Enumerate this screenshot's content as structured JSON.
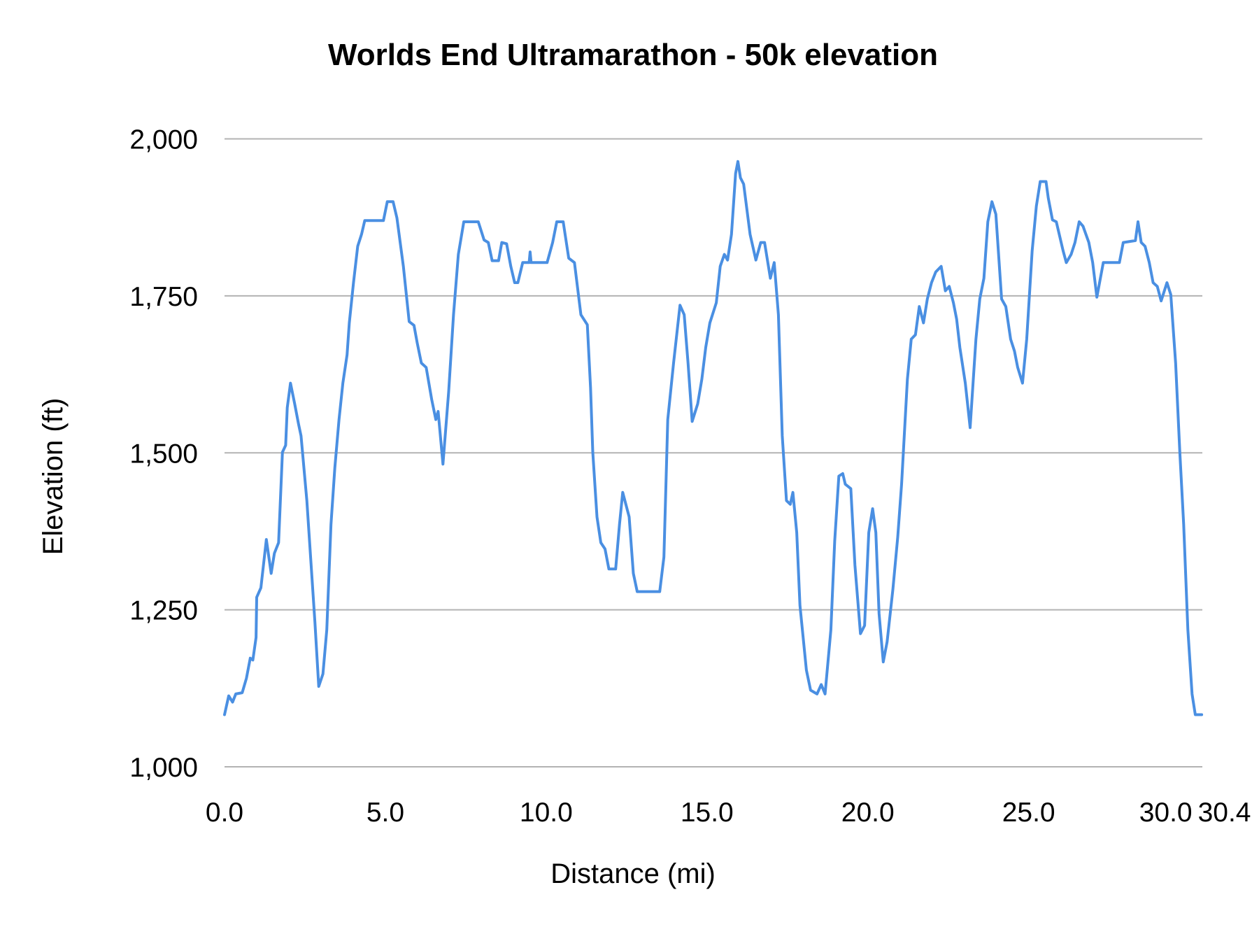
{
  "chart_data": {
    "type": "line",
    "title": "Worlds End Ultramarathon - 50k elevation",
    "xlabel": "Distance (mi)",
    "ylabel": "Elevation (ft)",
    "xlim": [
      0,
      30.4
    ],
    "ylim": [
      1000,
      2000
    ],
    "x_ticks": [
      "0.0",
      "5.0",
      "10.0",
      "15.0",
      "20.0",
      "25.0",
      "30.0",
      "30.4"
    ],
    "x_tick_values": [
      0,
      5,
      10,
      15,
      20,
      25,
      30,
      30.4
    ],
    "y_ticks": [
      "1,000",
      "1,250",
      "1,500",
      "1,750",
      "2,000"
    ],
    "y_tick_values": [
      1000,
      1250,
      1500,
      1750,
      2000
    ],
    "grid": "horizontal",
    "line_color": "#4a8fe2",
    "grid_color": "#b3b3b3",
    "series": [
      {
        "x": [
          0,
          0.13,
          0.25,
          0.35,
          0.55,
          0.68,
          0.8,
          0.88,
          0.98,
          1.0,
          1.13,
          1.3,
          1.45,
          1.55,
          1.68,
          1.8,
          1.9,
          1.95,
          2.05,
          2.18,
          2.3,
          2.38,
          2.56,
          2.81,
          2.93,
          3.06,
          3.18,
          3.31,
          3.43,
          3.56,
          3.68,
          3.81,
          3.88,
          4.01,
          4.14,
          4.26,
          4.36,
          4.94,
          5.06,
          5.24,
          5.36,
          5.56,
          5.74,
          5.89,
          5.99,
          6.12,
          6.27,
          6.44,
          6.57,
          6.64,
          6.79,
          6.97,
          7.12,
          7.27,
          7.44,
          7.89,
          8.07,
          8.2,
          8.32,
          8.52,
          8.62,
          8.77,
          8.9,
          9.02,
          9.12,
          9.27,
          9.47,
          9.5,
          9.53,
          10.03,
          10.2,
          10.33,
          10.53,
          10.7,
          10.88,
          11.08,
          11.28,
          11.38,
          11.45,
          11.58,
          11.7,
          11.83,
          11.95,
          12.16,
          12.28,
          12.38,
          12.58,
          12.71,
          12.83,
          13.53,
          13.66,
          13.78,
          13.96,
          14.16,
          14.29,
          14.41,
          14.54,
          14.71,
          14.84,
          14.96,
          15.09,
          15.29,
          15.41,
          15.54,
          15.64,
          15.76,
          15.89,
          15.96,
          16.04,
          16.14,
          16.34,
          16.52,
          16.67,
          16.79,
          16.97,
          17.09,
          17.22,
          17.34,
          17.47,
          17.59,
          17.67,
          17.79,
          17.89,
          18.09,
          18.22,
          18.42,
          18.55,
          18.67,
          18.85,
          18.97,
          19.1,
          19.22,
          19.3,
          19.47,
          19.6,
          19.77,
          19.9,
          20.03,
          20.15,
          20.25,
          20.35,
          20.48,
          20.6,
          20.78,
          20.93,
          21.05,
          21.23,
          21.35,
          21.48,
          21.6,
          21.73,
          21.85,
          21.98,
          22.11,
          22.28,
          22.41,
          22.53,
          22.66,
          22.76,
          22.86,
          23.03,
          23.18,
          23.36,
          23.48,
          23.61,
          23.73,
          23.86,
          23.98,
          24.16,
          24.29,
          24.44,
          24.56,
          24.66,
          24.81,
          24.94,
          25.11,
          25.24,
          25.36,
          25.54,
          25.61,
          25.74,
          25.86,
          26.07,
          26.17,
          26.32,
          26.44,
          26.57,
          26.69,
          26.87,
          26.99,
          27.12,
          27.32,
          27.82,
          27.94,
          28.32,
          28.4,
          28.5,
          28.62,
          28.75,
          28.87,
          29.0,
          29.12,
          29.3,
          29.42,
          29.57,
          29.7,
          29.82,
          29.95,
          30.08,
          30.18,
          30.38
        ],
        "y": [
          1083,
          1113,
          1103,
          1116,
          1118,
          1141,
          1173,
          1170,
          1206,
          1270,
          1285,
          1362,
          1308,
          1340,
          1357,
          1501,
          1512,
          1572,
          1611,
          1578,
          1546,
          1527,
          1424,
          1231,
          1128,
          1148,
          1218,
          1386,
          1476,
          1553,
          1611,
          1656,
          1707,
          1771,
          1829,
          1848,
          1870,
          1870,
          1900,
          1900,
          1874,
          1797,
          1709,
          1703,
          1675,
          1643,
          1636,
          1585,
          1553,
          1566,
          1482,
          1598,
          1720,
          1816,
          1868,
          1868,
          1839,
          1835,
          1806,
          1806,
          1835,
          1833,
          1797,
          1771,
          1771,
          1803,
          1803,
          1820,
          1803,
          1803,
          1835,
          1868,
          1868,
          1810,
          1803,
          1720,
          1704,
          1604,
          1501,
          1398,
          1357,
          1347,
          1315,
          1315,
          1386,
          1437,
          1398,
          1308,
          1279,
          1279,
          1334,
          1553,
          1643,
          1735,
          1720,
          1643,
          1550,
          1578,
          1617,
          1668,
          1707,
          1739,
          1797,
          1816,
          1807,
          1848,
          1945,
          1964,
          1938,
          1928,
          1848,
          1807,
          1835,
          1835,
          1778,
          1803,
          1720,
          1527,
          1424,
          1418,
          1437,
          1373,
          1257,
          1154,
          1122,
          1116,
          1131,
          1116,
          1218,
          1360,
          1463,
          1467,
          1450,
          1443,
          1321,
          1212,
          1225,
          1373,
          1411,
          1373,
          1244,
          1167,
          1199,
          1283,
          1366,
          1450,
          1617,
          1681,
          1688,
          1733,
          1707,
          1745,
          1771,
          1788,
          1797,
          1758,
          1765,
          1739,
          1713,
          1668,
          1611,
          1540,
          1681,
          1745,
          1778,
          1868,
          1900,
          1880,
          1745,
          1733,
          1681,
          1662,
          1636,
          1611,
          1681,
          1822,
          1893,
          1932,
          1932,
          1906,
          1871,
          1868,
          1822,
          1803,
          1816,
          1835,
          1868,
          1861,
          1835,
          1803,
          1748,
          1803,
          1803,
          1835,
          1838,
          1868,
          1835,
          1829,
          1803,
          1771,
          1765,
          1742,
          1771,
          1752,
          1643,
          1501,
          1386,
          1218,
          1116,
          1083,
          1083
        ]
      }
    ]
  }
}
